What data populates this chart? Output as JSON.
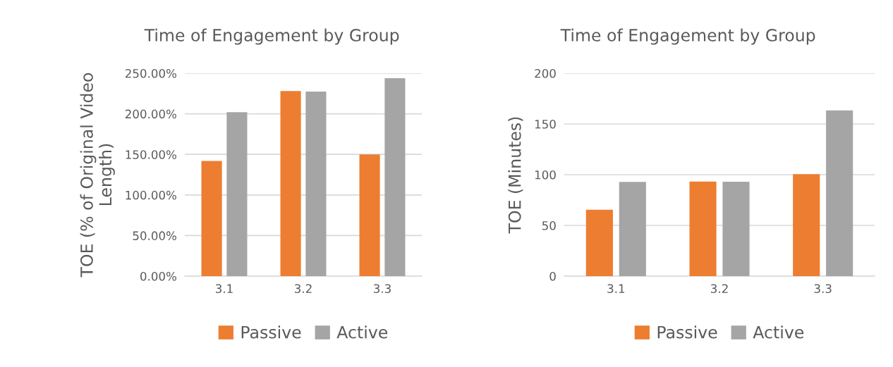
{
  "chart_data": [
    {
      "type": "bar",
      "title": "Time of Engagement by Group",
      "ylabel": "TOE (% of Original Video Length)",
      "categories": [
        "3.1",
        "3.2",
        "3.3"
      ],
      "series": [
        {
          "name": "Passive",
          "color": "#ed7d31",
          "values": [
            142,
            228,
            150
          ]
        },
        {
          "name": "Active",
          "color": "#a5a5a5",
          "values": [
            202,
            227.5,
            244
          ]
        }
      ],
      "ylim": [
        0,
        250
      ],
      "yticks": [
        {
          "value": 0,
          "label": "0.00%"
        },
        {
          "value": 50,
          "label": "50.00%"
        },
        {
          "value": 100,
          "label": "100.00%"
        },
        {
          "value": 150,
          "label": "150.00%"
        },
        {
          "value": 200,
          "label": "200.00%"
        },
        {
          "value": 250,
          "label": "250.00%"
        }
      ],
      "grid": "y",
      "legend": "bottom"
    },
    {
      "type": "bar",
      "title": "Time of Engagement by Group",
      "ylabel": "TOE (Minutes)",
      "categories": [
        "3.1",
        "3.2",
        "3.3"
      ],
      "series": [
        {
          "name": "Passive",
          "color": "#ed7d31",
          "values": [
            65.4,
            93.3,
            100.5
          ]
        },
        {
          "name": "Active",
          "color": "#a5a5a5",
          "values": [
            92.8,
            93,
            163.3
          ]
        }
      ],
      "ylim": [
        0,
        200
      ],
      "yticks": [
        0,
        50,
        100,
        150,
        200
      ],
      "grid": "y",
      "legend": "bottom"
    }
  ]
}
